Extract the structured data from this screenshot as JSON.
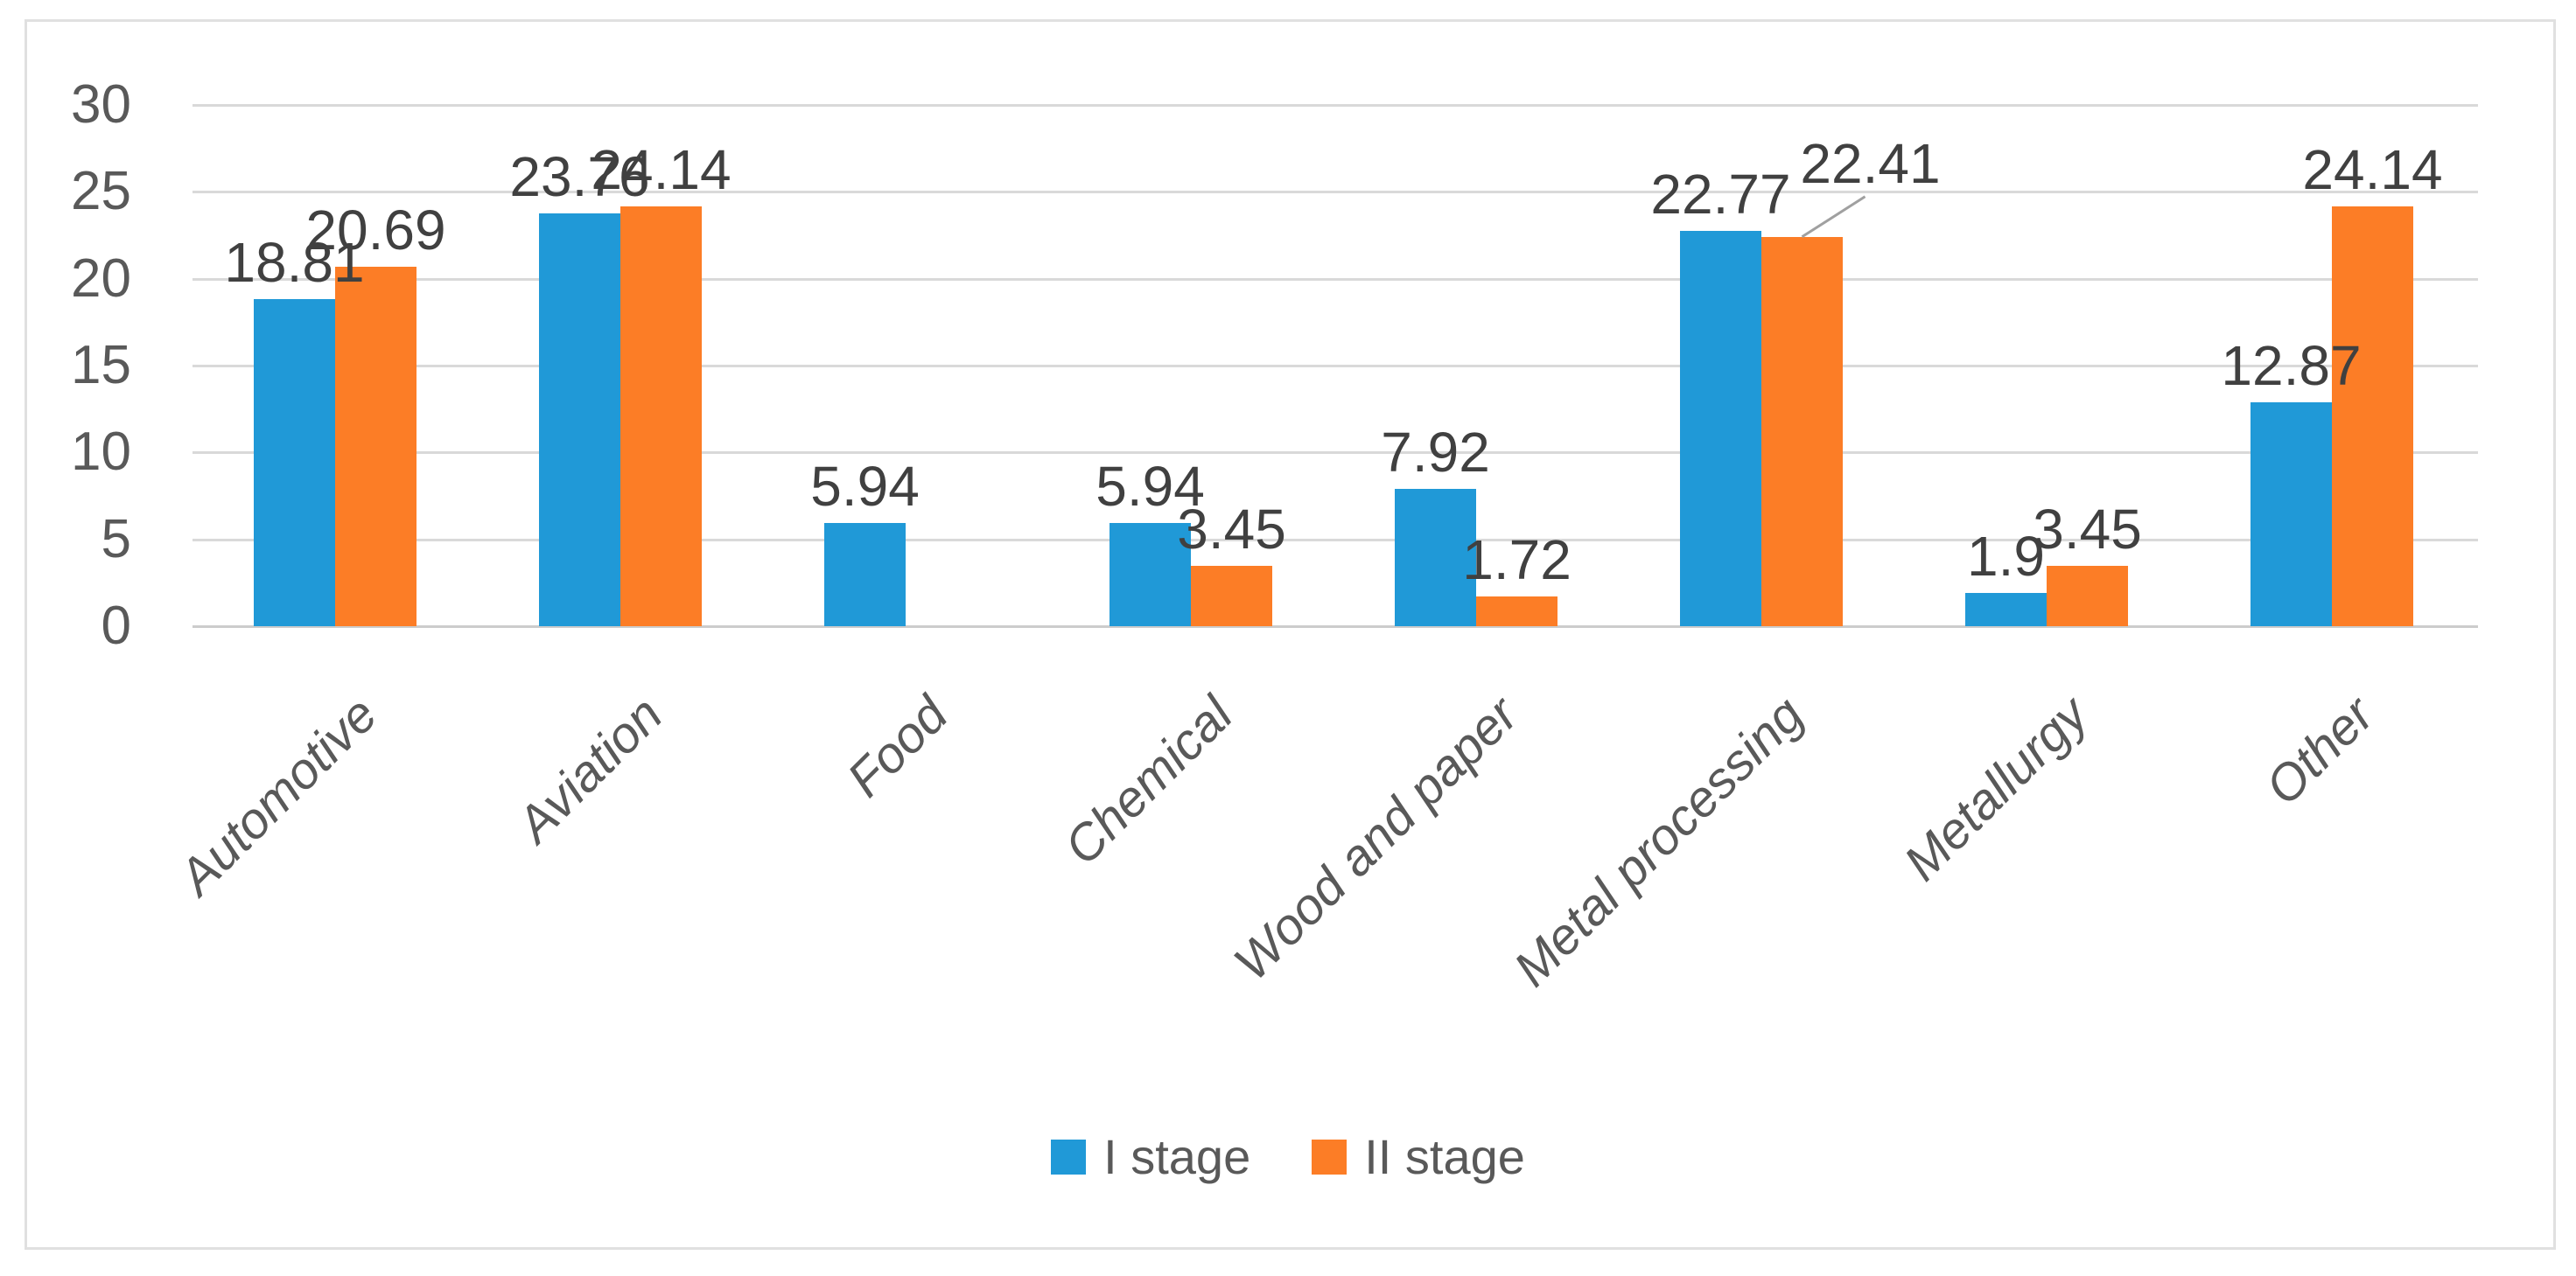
{
  "chart_data": {
    "type": "bar",
    "title": "",
    "categories": [
      "Automotive",
      "Aviation",
      "Food",
      "Chemical",
      "Wood and paper",
      "Metal processing",
      "Metallurgy",
      "Other"
    ],
    "series": [
      {
        "name": "I stage",
        "color": "#2099D7",
        "values": [
          18.81,
          23.76,
          5.94,
          5.94,
          7.92,
          22.77,
          1.9,
          12.87
        ]
      },
      {
        "name": "II stage",
        "color": "#FC7D26",
        "values": [
          20.69,
          24.14,
          null,
          3.45,
          1.72,
          22.41,
          3.45,
          24.14
        ]
      }
    ],
    "ylim": [
      0,
      30
    ],
    "yticks": [
      0,
      5,
      10,
      15,
      20,
      25,
      30
    ],
    "xlabel": "",
    "ylabel": "",
    "grid": true,
    "data_labels": true,
    "legend_position": "bottom",
    "legend_entries": [
      "I stage",
      "II stage"
    ],
    "annotations": [
      {
        "type": "leader-line",
        "series": "II stage",
        "category": "Metal processing",
        "note": "data label 22.41 is shifted up-right to avoid overlap; thin gray leader line connects label to top of orange bar"
      }
    ],
    "colors": {
      "gridline": "#d9d9d9",
      "axis_line": "#cccccc",
      "tick_text": "#595959",
      "data_label_text": "#404040",
      "category_text": "#595959",
      "legend_text": "#595959",
      "frame_border": "#e0e0e0",
      "leader_line": "#a0a0a0",
      "background": "#ffffff"
    }
  }
}
